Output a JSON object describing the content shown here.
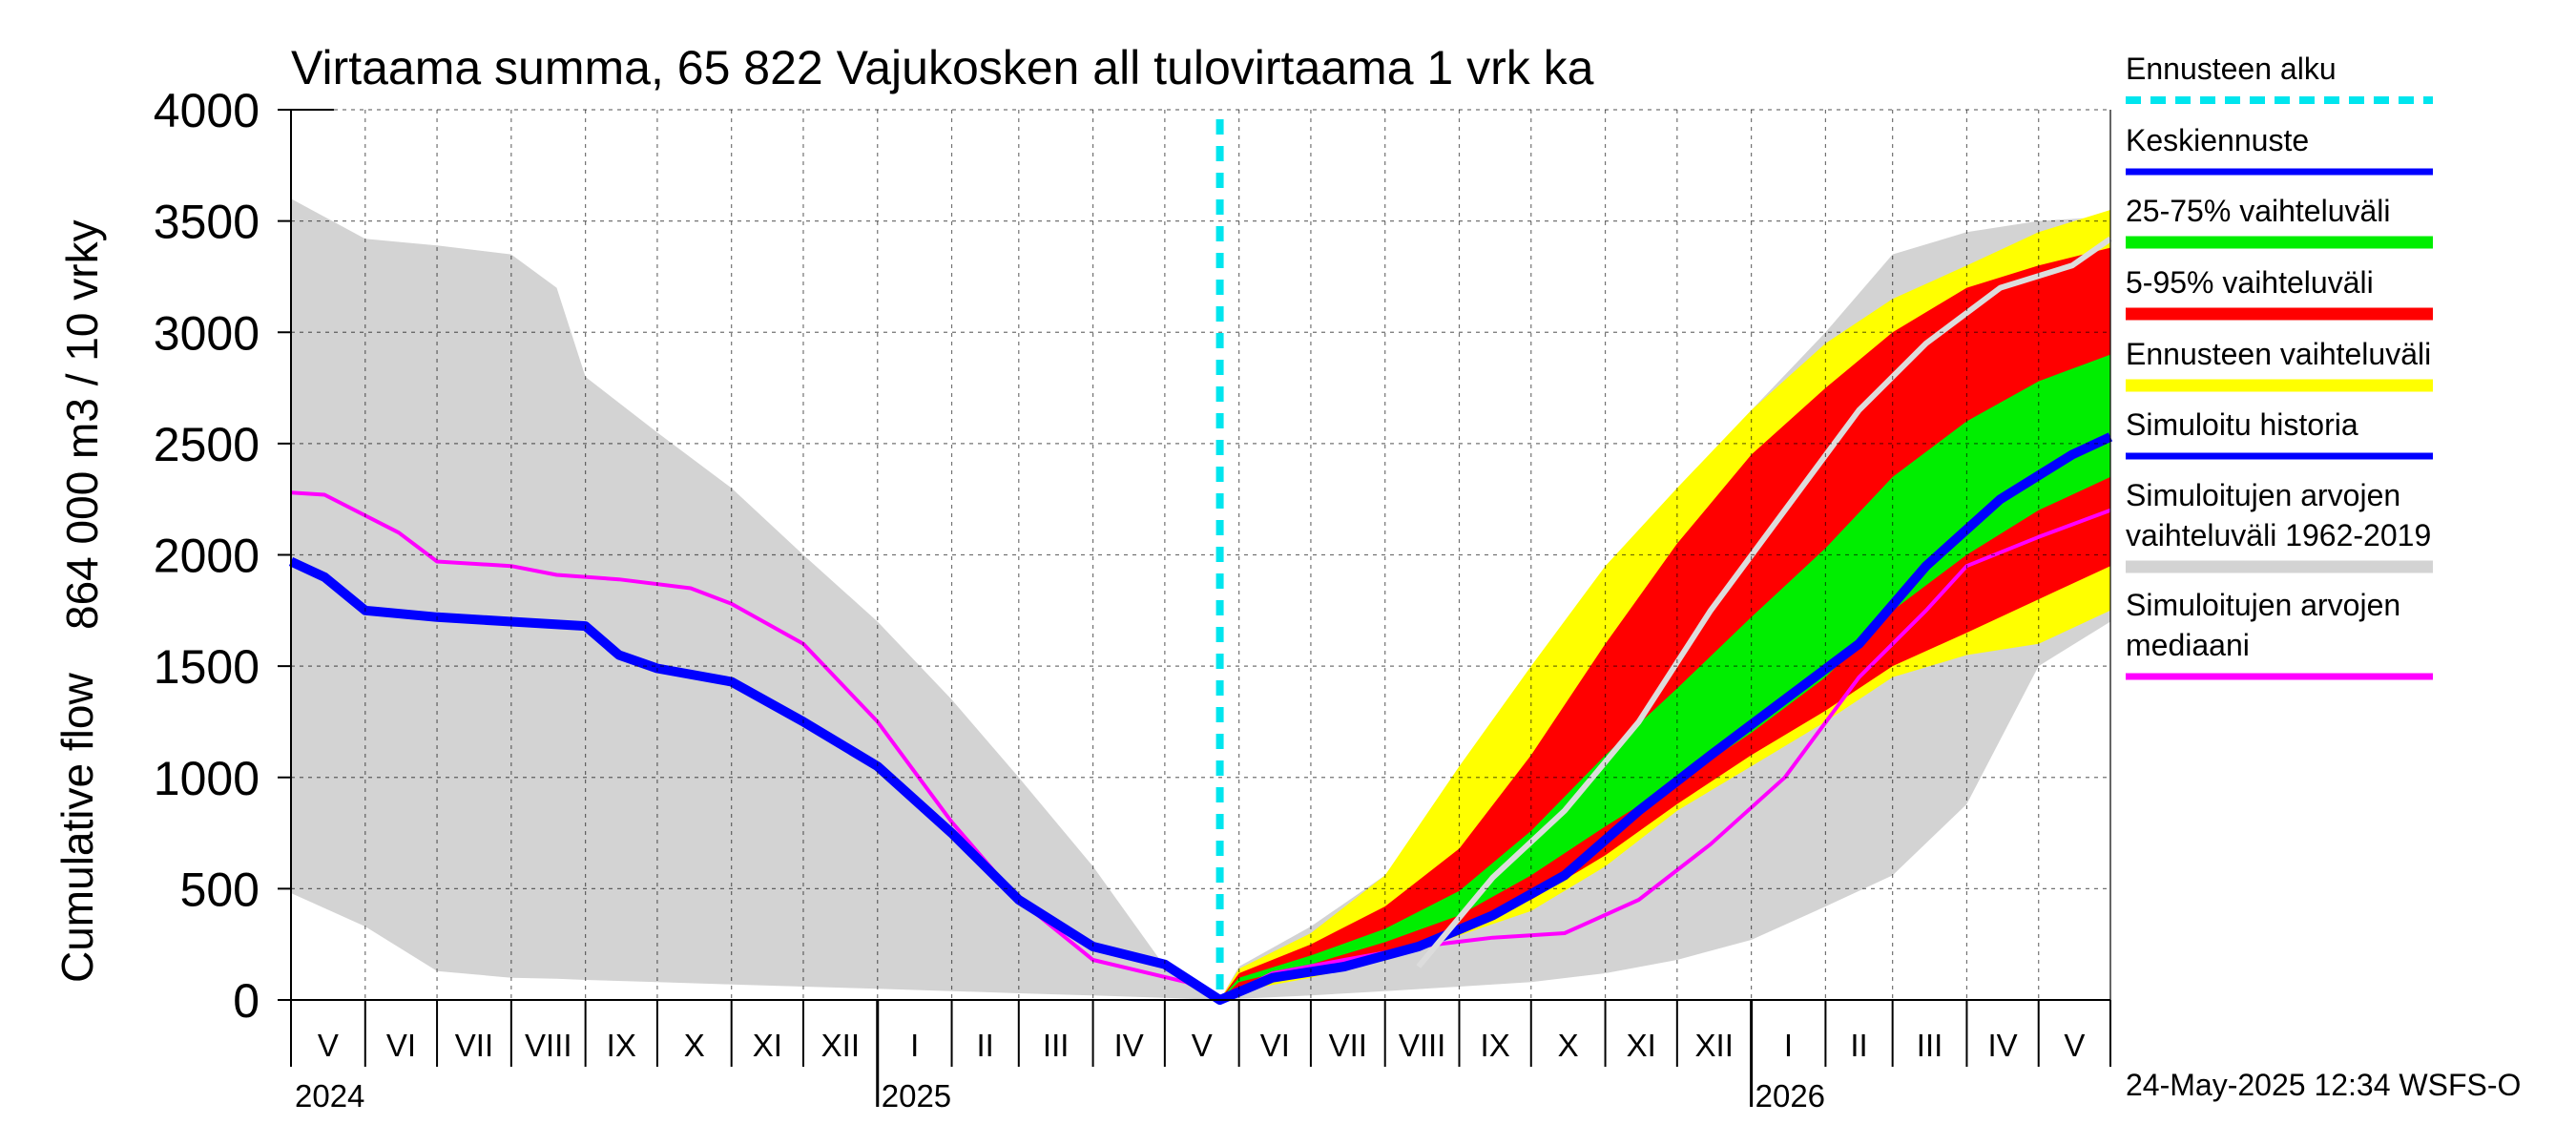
{
  "chart_data": {
    "type": "area",
    "title": "Virtaama summa, 65 822 Vajukosken all tulovirtaama 1 vrk ka",
    "ylabel_top": "864 000 m3 / 10 vrky",
    "ylabel_bottom": "Cumulative flow",
    "ylim": [
      0,
      4000
    ],
    "y_ticks": [
      "0",
      "500",
      "1000",
      "1500",
      "2000",
      "2500",
      "3000",
      "3500",
      "4000"
    ],
    "xlim": [
      "2024-05-01",
      "2026-05-31"
    ],
    "grid": true,
    "legend_position": "right",
    "forecast_start": "2025-05-24",
    "month_labels": [
      "V",
      "VI",
      "VII",
      "VIII",
      "IX",
      "X",
      "XI",
      "XII",
      "I",
      "II",
      "III",
      "IV",
      "V",
      "VI",
      "VII",
      "VIII",
      "IX",
      "X",
      "XI",
      "XII",
      "I",
      "II",
      "III",
      "IV",
      "V"
    ],
    "year_labels": [
      "2024",
      "2025",
      "2026"
    ],
    "legend": [
      {
        "label": "Ennusteen alku",
        "color": "#00e5ee",
        "style": "dashed"
      },
      {
        "label": "Keskiennuste",
        "color": "#0000ff",
        "style": "line"
      },
      {
        "label": "25-75% vaihteluväli",
        "color": "#00ee00",
        "style": "band"
      },
      {
        "label": "5-95% vaihteluväli",
        "color": "#ff0000",
        "style": "band"
      },
      {
        "label": "Ennusteen vaihteluväli",
        "color": "#ffff00",
        "style": "band"
      },
      {
        "label": "Simuloitu historia",
        "color": "#0000ff",
        "style": "line"
      },
      {
        "label": "Simuloitujen arvojen\nvaihteluväli 1962-2019",
        "color": "#d3d3d3",
        "style": "band"
      },
      {
        "label": "Simuloitujen arvojen\nmediaani",
        "color": "#ff00ff",
        "style": "line"
      }
    ],
    "series": [
      {
        "name": "Simuloitujen arvojen vaihteluväli 1962-2019",
        "kind": "band",
        "color": "#d3d3d3",
        "x": [
          "2024-05-01",
          "2024-06-01",
          "2024-07-01",
          "2024-08-01",
          "2024-08-20",
          "2024-09-01",
          "2024-10-01",
          "2024-11-01",
          "2024-12-01",
          "2025-01-01",
          "2025-02-01",
          "2025-03-01",
          "2025-04-01",
          "2025-05-01",
          "2025-05-24",
          "2025-06-01",
          "2025-07-01",
          "2025-08-01",
          "2025-09-01",
          "2025-10-01",
          "2025-11-01",
          "2025-12-01",
          "2026-01-01",
          "2026-02-01",
          "2026-03-01",
          "2026-04-01",
          "2026-05-01",
          "2026-05-31"
        ],
        "low": [
          480,
          330,
          130,
          100,
          95,
          90,
          80,
          70,
          60,
          50,
          40,
          30,
          20,
          10,
          0,
          5,
          20,
          40,
          60,
          80,
          120,
          180,
          270,
          420,
          560,
          880,
          1500,
          1700
        ],
        "high": [
          3600,
          3420,
          3390,
          3350,
          3200,
          2800,
          2550,
          2300,
          2000,
          1700,
          1350,
          1000,
          600,
          150,
          0,
          150,
          330,
          560,
          900,
          1300,
          1750,
          2200,
          2650,
          3000,
          3350,
          3450,
          3500,
          3520
        ]
      },
      {
        "name": "Ennusteen vaihteluväli",
        "kind": "band",
        "color": "#ffff00",
        "x": [
          "2025-05-24",
          "2025-06-01",
          "2025-07-01",
          "2025-08-01",
          "2025-09-01",
          "2025-10-01",
          "2025-11-01",
          "2025-12-01",
          "2026-01-01",
          "2026-02-01",
          "2026-03-01",
          "2026-04-01",
          "2026-05-01",
          "2026-05-31"
        ],
        "low": [
          0,
          40,
          100,
          180,
          290,
          400,
          600,
          850,
          1050,
          1250,
          1450,
          1550,
          1600,
          1750
        ],
        "high": [
          0,
          140,
          300,
          560,
          1050,
          1500,
          1950,
          2300,
          2650,
          2950,
          3150,
          3300,
          3450,
          3550
        ]
      },
      {
        "name": "5-95% vaihteluväli",
        "kind": "band",
        "color": "#ff0000",
        "x": [
          "2025-05-24",
          "2025-06-01",
          "2025-07-01",
          "2025-08-01",
          "2025-09-01",
          "2025-10-01",
          "2025-11-01",
          "2025-12-01",
          "2026-01-01",
          "2026-02-01",
          "2026-03-01",
          "2026-04-01",
          "2026-05-01",
          "2026-05-31"
        ],
        "low": [
          0,
          50,
          120,
          200,
          320,
          450,
          650,
          880,
          1100,
          1300,
          1500,
          1650,
          1800,
          1950
        ],
        "high": [
          0,
          120,
          250,
          420,
          680,
          1100,
          1600,
          2050,
          2450,
          2750,
          3000,
          3200,
          3300,
          3380
        ]
      },
      {
        "name": "25-75% vaihteluväli",
        "kind": "band",
        "color": "#00ee00",
        "x": [
          "2025-05-24",
          "2025-06-01",
          "2025-07-01",
          "2025-08-01",
          "2025-09-01",
          "2025-10-01",
          "2025-11-01",
          "2025-12-01",
          "2026-01-01",
          "2026-02-01",
          "2026-03-01",
          "2026-04-01",
          "2026-05-01",
          "2026-05-31"
        ],
        "low": [
          0,
          80,
          160,
          260,
          380,
          560,
          780,
          980,
          1200,
          1450,
          1750,
          2000,
          2200,
          2350
        ],
        "high": [
          0,
          100,
          200,
          320,
          490,
          760,
          1100,
          1400,
          1720,
          2030,
          2350,
          2600,
          2780,
          2900
        ]
      },
      {
        "name": "Simuloitujen arvojen mediaani",
        "kind": "line",
        "color": "#ff00ff",
        "x": [
          "2024-05-01",
          "2024-05-15",
          "2024-06-15",
          "2024-07-01",
          "2024-08-01",
          "2024-08-20",
          "2024-09-15",
          "2024-10-15",
          "2024-11-01",
          "2024-12-01",
          "2025-01-01",
          "2025-02-01",
          "2025-03-01",
          "2025-04-01",
          "2025-05-10",
          "2025-05-24",
          "2025-06-15",
          "2025-07-15",
          "2025-08-15",
          "2025-09-15",
          "2025-10-15",
          "2025-11-15",
          "2025-12-15",
          "2026-01-15",
          "2026-02-15",
          "2026-03-15",
          "2026-04-01",
          "2026-05-01",
          "2026-05-31"
        ],
        "values": [
          2280,
          2270,
          2100,
          1970,
          1950,
          1910,
          1890,
          1850,
          1780,
          1600,
          1250,
          800,
          450,
          180,
          80,
          0,
          120,
          180,
          240,
          280,
          300,
          450,
          700,
          1000,
          1450,
          1750,
          1950,
          2080,
          2200
        ]
      },
      {
        "name": "Simuloitu historia / Keskiennuste",
        "kind": "line",
        "color": "#0000ff",
        "x": [
          "2024-05-01",
          "2024-05-15",
          "2024-06-01",
          "2024-07-01",
          "2024-08-01",
          "2024-09-01",
          "2024-09-15",
          "2024-10-01",
          "2024-11-01",
          "2024-12-01",
          "2025-01-01",
          "2025-02-01",
          "2025-03-01",
          "2025-04-01",
          "2025-05-01",
          "2025-05-24",
          "2025-06-15",
          "2025-07-15",
          "2025-08-15",
          "2025-09-15",
          "2025-10-15",
          "2025-11-15",
          "2025-12-15",
          "2026-01-15",
          "2026-02-15",
          "2026-03-15",
          "2026-04-15",
          "2026-05-15",
          "2026-05-31"
        ],
        "values": [
          1970,
          1900,
          1750,
          1720,
          1700,
          1680,
          1550,
          1490,
          1430,
          1250,
          1050,
          750,
          450,
          240,
          160,
          0,
          100,
          150,
          240,
          380,
          560,
          850,
          1100,
          1350,
          1600,
          1950,
          2250,
          2450,
          2530
        ]
      },
      {
        "name": "Mediaani (light grey)",
        "kind": "line",
        "color": "#dcdcdc",
        "x": [
          "2025-08-15",
          "2025-09-15",
          "2025-10-15",
          "2025-11-15",
          "2025-12-15",
          "2026-01-15",
          "2026-02-15",
          "2026-03-15",
          "2026-04-15",
          "2026-05-15",
          "2026-05-31"
        ],
        "values": [
          150,
          550,
          850,
          1250,
          1750,
          2200,
          2650,
          2950,
          3200,
          3300,
          3420
        ]
      }
    ]
  },
  "footer": {
    "timestamp": "24-May-2025 12:34 WSFS-O"
  }
}
